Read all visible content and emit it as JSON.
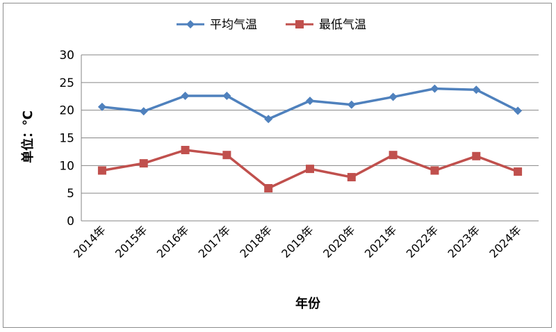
{
  "chart_data": {
    "type": "line",
    "categories": [
      "2014年",
      "2015年",
      "2016年",
      "2017年",
      "2018年",
      "2019年",
      "2020年",
      "2021年",
      "2022年",
      "2023年",
      "2024年"
    ],
    "series": [
      {
        "name": "平均气温",
        "values": [
          20.6,
          19.8,
          22.6,
          22.6,
          18.4,
          21.7,
          21.0,
          22.4,
          23.9,
          23.7,
          19.9
        ],
        "color": "#4f81bd",
        "marker": "diamond"
      },
      {
        "name": "最低气温",
        "values": [
          9.1,
          10.4,
          12.8,
          11.9,
          5.9,
          9.4,
          7.9,
          11.9,
          9.1,
          11.7,
          8.9
        ],
        "color": "#c0504d",
        "marker": "square"
      }
    ],
    "xlabel": "年份",
    "ylabel": "单位：℃",
    "ylim": [
      0,
      30
    ],
    "yticks": [
      0,
      5,
      10,
      15,
      20,
      25,
      30
    ],
    "grid": true,
    "legend_position": "top"
  }
}
